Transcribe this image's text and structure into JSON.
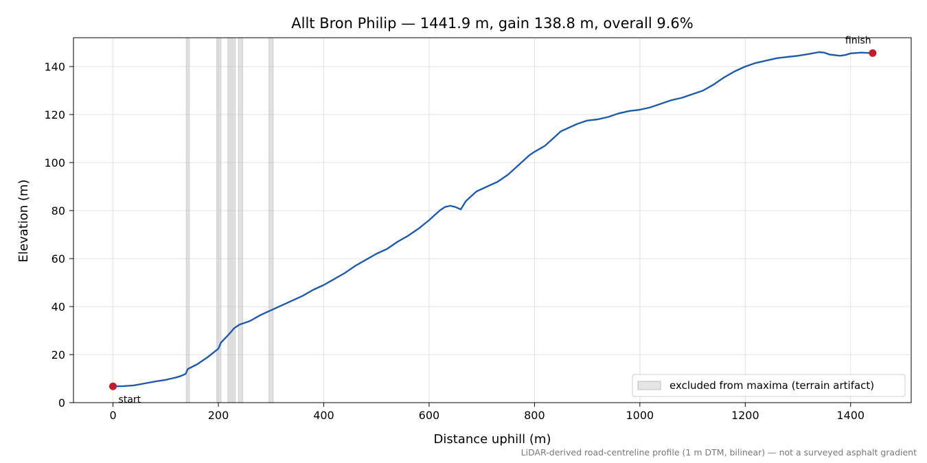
{
  "chart_data": {
    "type": "line",
    "title": "Allt Bron Philip — 1441.9 m, gain 138.8 m, overall 9.6%",
    "xlabel": "Distance uphill (m)",
    "ylabel": "Elevation (m)",
    "xlim": [
      -75,
      1515
    ],
    "ylim": [
      0,
      152
    ],
    "xticks": [
      0,
      200,
      400,
      600,
      800,
      1000,
      1200,
      1400
    ],
    "yticks": [
      0,
      20,
      40,
      60,
      80,
      100,
      120,
      140
    ],
    "grid": true,
    "legend": {
      "placement": "lower-right",
      "label": "excluded from maxima (terrain artifact)"
    },
    "caption": "LiDAR-derived road-centreline profile (1 m DTM, bilinear) — not a surveyed asphalt gradient",
    "colors": {
      "line": "#1f5aa8",
      "marker": "#c01c2a",
      "band": "#bdbdbd",
      "grid": "#e0e0e0"
    },
    "excluded_bands": [
      [
        139,
        145
      ],
      [
        197,
        205
      ],
      [
        218,
        224
      ],
      [
        226,
        232
      ],
      [
        238,
        246
      ],
      [
        296,
        304
      ]
    ],
    "markers": [
      {
        "label": "start",
        "x": 0,
        "y": 6.8
      },
      {
        "label": "finish",
        "x": 1441.9,
        "y": 145.6
      }
    ],
    "series": [
      {
        "x": [
          0,
          20,
          40,
          60,
          80,
          100,
          110,
          120,
          130,
          138,
          142,
          160,
          180,
          200,
          205,
          220,
          230,
          240,
          260,
          280,
          300,
          320,
          340,
          360,
          380,
          400,
          420,
          440,
          460,
          480,
          500,
          520,
          540,
          560,
          580,
          600,
          620,
          630,
          640,
          650,
          660,
          670,
          690,
          710,
          730,
          750,
          770,
          790,
          800,
          820,
          840,
          850,
          860,
          880,
          900,
          920,
          940,
          960,
          980,
          1000,
          1020,
          1040,
          1060,
          1080,
          1100,
          1120,
          1140,
          1160,
          1180,
          1200,
          1220,
          1240,
          1260,
          1280,
          1300,
          1320,
          1340,
          1350,
          1360,
          1380,
          1390,
          1400,
          1420,
          1441.9
        ],
        "y": [
          6.8,
          6.9,
          7.2,
          8.0,
          8.8,
          9.5,
          10.0,
          10.5,
          11.2,
          12.0,
          14.0,
          16.0,
          19.0,
          22.5,
          25.0,
          28.5,
          31.0,
          32.5,
          34.0,
          36.5,
          38.5,
          40.5,
          42.5,
          44.5,
          47.0,
          49.0,
          51.5,
          54.0,
          57.0,
          59.5,
          62.0,
          64.0,
          67.0,
          69.5,
          72.5,
          76.0,
          80.0,
          81.5,
          82.0,
          81.5,
          80.5,
          84.0,
          88.0,
          90.0,
          92.0,
          95.0,
          99.0,
          103.0,
          104.5,
          107.0,
          111.0,
          113.0,
          114.0,
          116.0,
          117.5,
          118.0,
          119.0,
          120.5,
          121.5,
          122.0,
          123.0,
          124.5,
          126.0,
          127.0,
          128.5,
          130.0,
          132.5,
          135.5,
          138.0,
          140.0,
          141.5,
          142.5,
          143.5,
          144.0,
          144.5,
          145.2,
          146.0,
          145.8,
          145.0,
          144.5,
          144.8,
          145.5,
          145.8,
          145.6
        ]
      }
    ]
  }
}
